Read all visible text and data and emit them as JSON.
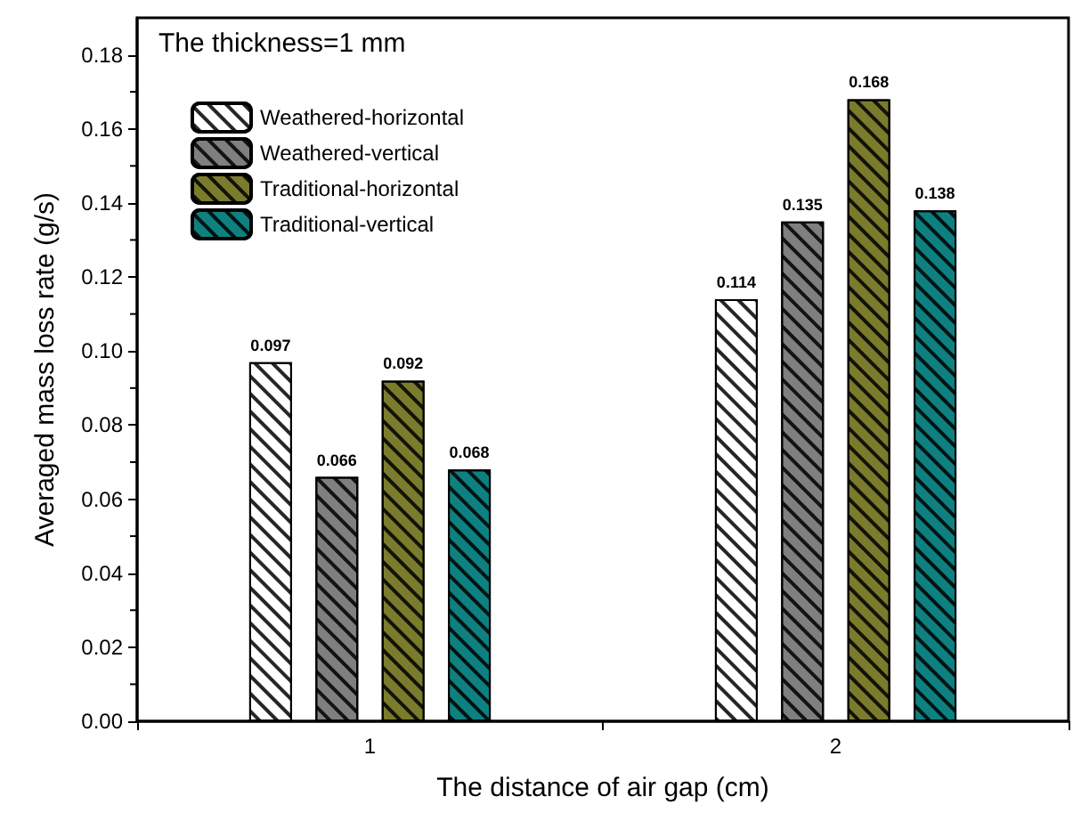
{
  "chart_data": {
    "type": "bar",
    "title": "The thickness=1 mm",
    "xlabel": "The distance of air gap (cm)",
    "ylabel": "Averaged mass loss rate (g/s)",
    "categories": [
      "1",
      "2"
    ],
    "series": [
      {
        "name": "Weathered-horizontal",
        "color": "#ffffff",
        "values": [
          0.097,
          0.114
        ]
      },
      {
        "name": "Weathered-vertical",
        "color": "#7f7f7f",
        "values": [
          0.066,
          0.135
        ]
      },
      {
        "name": "Traditional-horizontal",
        "color": "#7b7b2c",
        "values": [
          0.092,
          0.168
        ]
      },
      {
        "name": "Traditional-vertical",
        "color": "#0f8080",
        "values": [
          0.068,
          0.138
        ]
      }
    ],
    "ylim": [
      0,
      0.19
    ],
    "yticks": [
      {
        "value": 0,
        "label": "0.00"
      },
      {
        "value": 0.02,
        "label": "0.02"
      },
      {
        "value": 0.04,
        "label": "0.04"
      },
      {
        "value": 0.06,
        "label": "0.06"
      },
      {
        "value": 0.08,
        "label": "0.08"
      },
      {
        "value": 0.1,
        "label": "0.10"
      },
      {
        "value": 0.12,
        "label": "0.12"
      },
      {
        "value": 0.14,
        "label": "0.14"
      },
      {
        "value": 0.16,
        "label": "0.16"
      },
      {
        "value": 0.18,
        "label": "0.18"
      }
    ],
    "data_labels": true,
    "legend": "top left",
    "grid": false
  }
}
